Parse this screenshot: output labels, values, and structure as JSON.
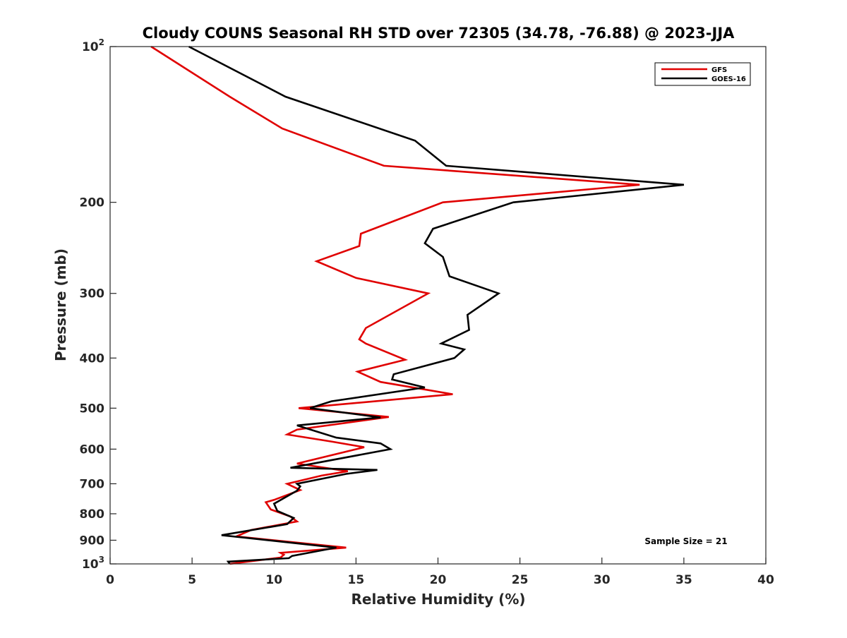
{
  "chart_data": {
    "type": "line",
    "title": "Cloudy COUNS Seasonal RH STD over 72305 (34.78, -76.88) @ 2023-JJA",
    "xlabel": "Relative Humidity (%)",
    "ylabel": "Pressure (mb)",
    "xlim": [
      0,
      40
    ],
    "ylim": [
      100,
      1000
    ],
    "yscale": "log",
    "y_reversed": true,
    "grid": false,
    "legend_position": "top-right",
    "xticks": [
      {
        "value": 0,
        "label": "0"
      },
      {
        "value": 5,
        "label": "5"
      },
      {
        "value": 10,
        "label": "10"
      },
      {
        "value": 15,
        "label": "15"
      },
      {
        "value": 20,
        "label": "20"
      },
      {
        "value": 25,
        "label": "25"
      },
      {
        "value": 30,
        "label": "30"
      },
      {
        "value": 35,
        "label": "35"
      },
      {
        "value": 40,
        "label": "40"
      }
    ],
    "yticks": [
      {
        "value": 100,
        "base": "10",
        "exp": "2"
      },
      {
        "value": 200,
        "base": "200",
        "exp": ""
      },
      {
        "value": 300,
        "base": "300",
        "exp": ""
      },
      {
        "value": 400,
        "base": "400",
        "exp": ""
      },
      {
        "value": 500,
        "base": "500",
        "exp": ""
      },
      {
        "value": 600,
        "base": "600",
        "exp": ""
      },
      {
        "value": 700,
        "base": "700",
        "exp": ""
      },
      {
        "value": 800,
        "base": "800",
        "exp": ""
      },
      {
        "value": 900,
        "base": "900",
        "exp": ""
      },
      {
        "value": 1000,
        "base": "10",
        "exp": "3"
      }
    ],
    "series": [
      {
        "name": "GFS",
        "color": "#e00000",
        "points": [
          [
            2.5,
            100
          ],
          [
            7.3,
            125
          ],
          [
            10.5,
            144
          ],
          [
            16.7,
            170
          ],
          [
            32.3,
            185
          ],
          [
            20.3,
            200
          ],
          [
            15.3,
            230
          ],
          [
            15.2,
            243
          ],
          [
            12.6,
            260
          ],
          [
            15.0,
            280
          ],
          [
            19.4,
            300
          ],
          [
            15.6,
            350
          ],
          [
            15.2,
            368
          ],
          [
            15.6,
            375
          ],
          [
            18.0,
            403
          ],
          [
            15.1,
            425
          ],
          [
            16.5,
            445
          ],
          [
            20.9,
            470
          ],
          [
            11.5,
            500
          ],
          [
            17.0,
            520
          ],
          [
            11.4,
            550
          ],
          [
            10.8,
            562
          ],
          [
            13.5,
            580
          ],
          [
            15.5,
            595
          ],
          [
            11.4,
            640
          ],
          [
            14.5,
            662
          ],
          [
            12.9,
            675
          ],
          [
            10.8,
            700
          ],
          [
            11.6,
            720
          ],
          [
            10.0,
            752
          ],
          [
            9.5,
            760
          ],
          [
            9.8,
            785
          ],
          [
            11.0,
            810
          ],
          [
            11.4,
            828
          ],
          [
            8.6,
            860
          ],
          [
            7.7,
            885
          ],
          [
            14.4,
            930
          ],
          [
            10.4,
            952
          ],
          [
            10.6,
            960
          ],
          [
            10.4,
            972
          ],
          [
            7.3,
            1000
          ]
        ]
      },
      {
        "name": "GOES-16",
        "color": "#000000",
        "points": [
          [
            4.8,
            100
          ],
          [
            10.7,
            125
          ],
          [
            18.6,
            152
          ],
          [
            20.5,
            170
          ],
          [
            35.0,
            185
          ],
          [
            24.6,
            200
          ],
          [
            19.7,
            225
          ],
          [
            19.2,
            240
          ],
          [
            20.3,
            255
          ],
          [
            20.7,
            278
          ],
          [
            23.7,
            300
          ],
          [
            21.8,
            330
          ],
          [
            21.9,
            353
          ],
          [
            20.2,
            375
          ],
          [
            21.6,
            385
          ],
          [
            21.0,
            400
          ],
          [
            17.3,
            430
          ],
          [
            17.2,
            440
          ],
          [
            19.2,
            456
          ],
          [
            13.5,
            485
          ],
          [
            12.2,
            500
          ],
          [
            16.5,
            521
          ],
          [
            11.4,
            540
          ],
          [
            13.8,
            570
          ],
          [
            16.5,
            585
          ],
          [
            17.1,
            600
          ],
          [
            11.0,
            652
          ],
          [
            16.3,
            658
          ],
          [
            14.4,
            670
          ],
          [
            11.4,
            700
          ],
          [
            11.6,
            708
          ],
          [
            11.4,
            722
          ],
          [
            10.0,
            765
          ],
          [
            10.2,
            790
          ],
          [
            11.2,
            815
          ],
          [
            10.8,
            838
          ],
          [
            6.8,
            880
          ],
          [
            13.8,
            930
          ],
          [
            11.1,
            965
          ],
          [
            10.9,
            975
          ],
          [
            7.2,
            990
          ],
          [
            7.3,
            1000
          ]
        ]
      }
    ],
    "annotation": "Sample Size = 21"
  }
}
